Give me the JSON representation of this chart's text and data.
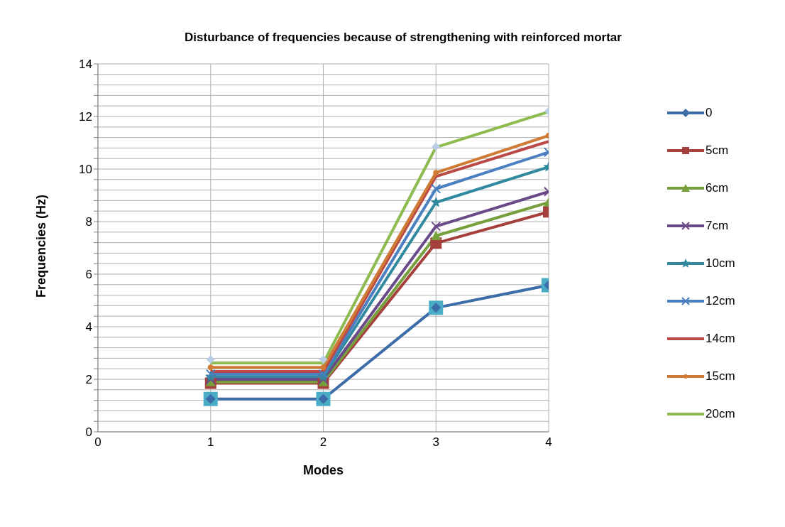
{
  "chart_data": {
    "type": "line",
    "title": "Disturbance of frequencies because of strengthening with reinforced mortar",
    "xlabel": "Modes",
    "ylabel": "Frequencies (Hz)",
    "x": [
      1,
      2,
      3,
      4
    ],
    "xlim": [
      0,
      4
    ],
    "xticks": [
      0,
      1,
      2,
      3,
      4
    ],
    "ylim": [
      0,
      14
    ],
    "yticks": [
      0,
      {
        "value": 0.4,
        "label": null
      },
      {
        "value": 0.8,
        "label": null
      },
      {
        "value": 1.2,
        "label": null
      },
      {
        "value": 1.6,
        "label": null
      },
      2,
      {
        "value": 2.4,
        "label": null
      },
      {
        "value": 2.8,
        "label": null
      },
      {
        "value": 3.2,
        "label": null
      },
      {
        "value": 3.6,
        "label": null
      },
      4,
      {
        "value": 4.4,
        "label": null
      },
      {
        "value": 4.8,
        "label": null
      },
      {
        "value": 5.2,
        "label": null
      },
      {
        "value": 5.6,
        "label": null
      },
      6,
      {
        "value": 6.4,
        "label": null
      },
      {
        "value": 6.8,
        "label": null
      },
      {
        "value": 7.2,
        "label": null
      },
      {
        "value": 7.6,
        "label": null
      },
      8,
      {
        "value": 8.4,
        "label": null
      },
      {
        "value": 8.8,
        "label": null
      },
      {
        "value": 9.2,
        "label": null
      },
      {
        "value": 9.6,
        "label": null
      },
      10,
      {
        "value": 10.4,
        "label": null
      },
      {
        "value": 10.8,
        "label": null
      },
      {
        "value": 11.2,
        "label": null
      },
      {
        "value": 11.6,
        "label": null
      },
      12,
      {
        "value": 12.4,
        "label": null
      },
      {
        "value": 12.8,
        "label": null
      },
      {
        "value": 13.2,
        "label": null
      },
      {
        "value": 13.6,
        "label": null
      },
      14
    ],
    "grid": true,
    "legend": "right",
    "line_style": "solid",
    "series": [
      {
        "type": "scatter",
        "color": "#4bacc6",
        "marker": "square",
        "values": [
          1.25,
          1.25,
          4.72,
          5.58
        ]
      },
      {
        "type": "scatter",
        "color": "#b9cde5",
        "marker": "diamond",
        "values": [
          2.75,
          2.75,
          10.85,
          12.2
        ]
      },
      {
        "name": "0",
        "color": "#3c6da8",
        "marker": "diamond",
        "values": [
          1.25,
          1.25,
          4.72,
          5.58
        ]
      },
      {
        "name": "5cm",
        "color": "#a5403d",
        "marker": "square",
        "values": [
          1.85,
          1.85,
          7.18,
          8.37
        ]
      },
      {
        "name": "6cm",
        "color": "#77a03c",
        "marker": "triangle",
        "values": [
          1.9,
          1.9,
          7.46,
          8.73
        ]
      },
      {
        "name": "7cm",
        "color": "#6b4a8a",
        "marker": "cross",
        "values": [
          2.0,
          2.0,
          7.82,
          9.14
        ]
      },
      {
        "name": "10cm",
        "color": "#31899f",
        "marker": "star",
        "values": [
          2.1,
          2.1,
          8.73,
          10.08
        ]
      },
      {
        "name": "12cm",
        "color": "#4a7fc1",
        "marker": "cross",
        "values": [
          2.2,
          2.2,
          9.25,
          10.64
        ]
      },
      {
        "name": "14cm",
        "color": "#b94a48",
        "marker": "none",
        "values": [
          2.3,
          2.3,
          9.72,
          11.05
        ]
      },
      {
        "name": "15cm",
        "color": "#cf7a35",
        "marker": "circle",
        "values": [
          2.45,
          2.45,
          9.86,
          11.27
        ]
      },
      {
        "name": "20cm",
        "color": "#8dbb4f",
        "marker": "none",
        "values": [
          2.62,
          2.62,
          10.83,
          12.18
        ]
      }
    ]
  }
}
